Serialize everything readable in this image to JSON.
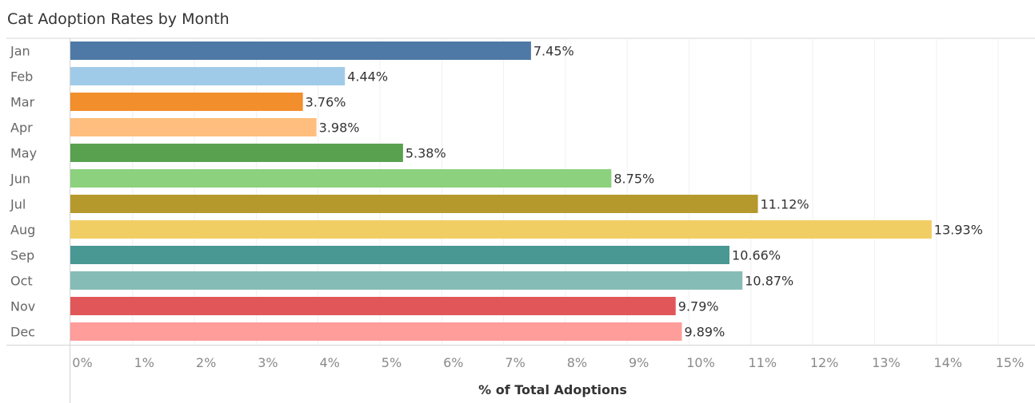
{
  "chart_data": {
    "type": "bar",
    "orientation": "horizontal",
    "title": "Cat Adoption Rates by Month",
    "xlabel": "% of Total Adoptions",
    "ylabel": "",
    "categories": [
      "Jan",
      "Feb",
      "Mar",
      "Apr",
      "May",
      "Jun",
      "Jul",
      "Aug",
      "Sep",
      "Oct",
      "Nov",
      "Dec"
    ],
    "values": [
      7.45,
      4.44,
      3.76,
      3.98,
      5.38,
      8.75,
      11.12,
      13.93,
      10.66,
      10.87,
      9.79,
      9.89
    ],
    "value_labels": [
      "7.45%",
      "4.44%",
      "3.76%",
      "3.98%",
      "5.38%",
      "8.75%",
      "11.12%",
      "13.93%",
      "10.66%",
      "10.87%",
      "9.79%",
      "9.89%"
    ],
    "colors": [
      "#4e79a7",
      "#a0cbe8",
      "#f28e2b",
      "#ffbe7d",
      "#59a14f",
      "#8cd17d",
      "#b6992d",
      "#f1ce63",
      "#499894",
      "#86bcb6",
      "#e15759",
      "#ff9d9a"
    ],
    "xlim": [
      0,
      15
    ],
    "xticks": [
      "0%",
      "1%",
      "2%",
      "3%",
      "4%",
      "5%",
      "6%",
      "7%",
      "8%",
      "9%",
      "10%",
      "11%",
      "12%",
      "13%",
      "14%",
      "15%"
    ],
    "grid": true,
    "legend": "none"
  }
}
